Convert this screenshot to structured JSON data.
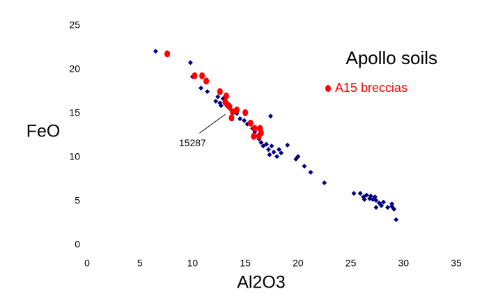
{
  "chart_data": {
    "type": "scatter",
    "x_label": "Al2O3",
    "y_label": "FeO",
    "legend_title": "Apollo soils",
    "xlim": [
      0,
      35
    ],
    "xticks": [
      0,
      5,
      10,
      15,
      20,
      25,
      30,
      35
    ],
    "ylim": [
      0,
      25
    ],
    "yticks": [
      0,
      5,
      10,
      15,
      20,
      25
    ],
    "series": [
      {
        "color": "#000080",
        "x": [
          6.5,
          9.8,
          10.0,
          10.8,
          11.4,
          12.2,
          12.4,
          12.6,
          12.9,
          12.7,
          13.2,
          13.5,
          13.8,
          14.2,
          14.5,
          14.9,
          15.2,
          15.7,
          15.9,
          16.2,
          16.3,
          16.5,
          16.7,
          17.0,
          17.2,
          17.3,
          17.5,
          17.7,
          17.4,
          18.0,
          18.2,
          18.4,
          19.0,
          19.8,
          20.0,
          20.6,
          21.2,
          22.5,
          25.3,
          25.9,
          26.2,
          26.3,
          26.5,
          26.8,
          26.9,
          27.1,
          27.3,
          27.4,
          27.7,
          27.9,
          28.1,
          28.5,
          28.9,
          29.1,
          28.9,
          29.3,
          27.4
        ],
        "values": [
          22.1,
          20.8,
          19.2,
          17.9,
          17.5,
          16.4,
          16.9,
          16.2,
          16.7,
          15.9,
          16.0,
          15.6,
          15.2,
          15.0,
          14.4,
          14.2,
          13.8,
          13.3,
          12.9,
          12.5,
          12.1,
          11.7,
          11.3,
          11.5,
          10.9,
          10.3,
          11.3,
          10.6,
          14.7,
          10.1,
          10.9,
          10.5,
          11.4,
          9.8,
          10.1,
          9.0,
          8.3,
          7.1,
          5.9,
          5.9,
          5.5,
          5.2,
          5.7,
          5.3,
          5.6,
          5.2,
          5.5,
          5.1,
          4.8,
          4.5,
          4.9,
          4.3,
          4.4,
          4.1,
          4.7,
          2.9,
          4.3
        ]
      },
      {
        "name": "A15 breccias",
        "color": "#ff0000",
        "x": [
          7.6,
          10.2,
          10.9,
          11.3,
          12.6,
          13.2,
          13.1,
          13.3,
          13.5,
          13.8,
          13.7,
          14.2,
          15.0,
          15.5,
          15.9,
          16.4,
          16.5,
          15.8,
          16.3
        ],
        "values": [
          21.8,
          19.3,
          19.3,
          18.7,
          17.5,
          17.0,
          16.3,
          16.0,
          15.8,
          15.2,
          14.5,
          15.4,
          15.1,
          13.9,
          13.3,
          13.3,
          12.8,
          12.4,
          12.4
        ]
      }
    ],
    "annotations": [
      {
        "text": "15287",
        "x": 13.1,
        "y": 14.9
      }
    ]
  }
}
